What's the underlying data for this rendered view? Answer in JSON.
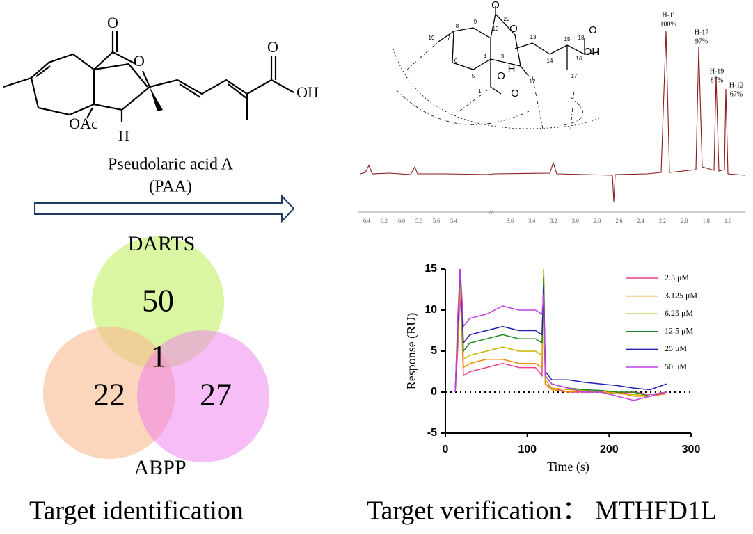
{
  "structure": {
    "atoms": [
      "O",
      "O",
      "OAc",
      "H",
      "O",
      "OH"
    ],
    "name": "Pseudolaric acid A",
    "abbreviation": "(PAA)"
  },
  "nmr": {
    "peaks": [
      {
        "label": "H-1'",
        "percent": "100%"
      },
      {
        "label": "H-17",
        "percent": "97%"
      },
      {
        "label": "H-19",
        "percent": "87%"
      },
      {
        "label": "H-12",
        "percent": "67%"
      }
    ],
    "ppm_ticks": [
      "6.4",
      "6.2",
      "6.0",
      "5.8",
      "5.6",
      "5.4",
      "3.6",
      "3.4",
      "3.2",
      "3.0",
      "2.8",
      "2.6",
      "2.4",
      "2.2",
      "2.0",
      "1.8",
      "1.6"
    ],
    "structure_labels": [
      "19",
      "7",
      "8",
      "9",
      "10",
      "20",
      "O",
      "O",
      "13",
      "15",
      "18",
      "OH",
      "O",
      "6",
      "5",
      "4",
      "3",
      "H",
      "14",
      "16",
      "12",
      "17",
      "O",
      "1'",
      "O"
    ]
  },
  "venn": {
    "sets": [
      "DARTS",
      "ABPP"
    ],
    "counts": [
      50,
      22,
      27,
      1
    ]
  },
  "chart_data": {
    "type": "line",
    "xlabel": "Time (s)",
    "ylabel": "Response (RU)",
    "x": [
      12,
      15,
      18,
      20,
      22,
      30,
      50,
      70,
      90,
      110,
      118,
      120,
      122,
      130,
      150,
      170,
      190,
      210,
      230,
      250,
      270
    ],
    "xlim": [
      0,
      300
    ],
    "xticks": [
      0,
      100,
      200,
      300
    ],
    "ylim": [
      -5,
      15
    ],
    "yticks": [
      -5,
      0,
      5,
      10,
      15
    ],
    "series": [
      {
        "name": "2.5 μM",
        "color": "#e8408a",
        "values": [
          0,
          5,
          12,
          8,
          2,
          2.5,
          3,
          3.5,
          3,
          3,
          2,
          15,
          1,
          0.5,
          0,
          0,
          0,
          -0.2,
          0,
          -0.3,
          0
        ]
      },
      {
        "name": "3.125 μM",
        "color": "#f08c00",
        "values": [
          0,
          6,
          13,
          9,
          3,
          3.5,
          4,
          4,
          3.5,
          3.5,
          3,
          14,
          1,
          0.3,
          0,
          0.2,
          0,
          0,
          -0.5,
          -0.5,
          -0.2
        ]
      },
      {
        "name": "6.25 μM",
        "color": "#c8b400",
        "values": [
          0,
          7,
          14,
          10,
          4,
          4.5,
          5,
          5.5,
          5,
          5,
          4.5,
          15,
          1.5,
          0.5,
          0.3,
          0.2,
          0,
          -0.2,
          -0.3,
          -0.5,
          0
        ]
      },
      {
        "name": "12.5 μM",
        "color": "#1a8a1a",
        "values": [
          0,
          8,
          15,
          11,
          5,
          6,
          6.5,
          7,
          6.5,
          6.5,
          6,
          14,
          2,
          1,
          0.5,
          0.3,
          0.2,
          0,
          0,
          -0.5,
          0
        ]
      },
      {
        "name": "25 μM",
        "color": "#2020b0",
        "values": [
          0,
          8,
          15,
          11,
          6,
          7,
          7.5,
          8,
          7.5,
          7.5,
          7,
          13,
          2.5,
          1.5,
          1.5,
          1.2,
          1,
          0.8,
          0.5,
          0.3,
          1
        ]
      },
      {
        "name": "50 μM",
        "color": "#c040e0",
        "values": [
          0,
          9,
          15,
          12,
          8,
          9,
          9.5,
          10.5,
          10,
          10,
          9.5,
          12,
          2,
          1,
          0.5,
          0,
          0,
          -0.5,
          -1,
          -0.5,
          0
        ]
      }
    ]
  },
  "captions": [
    "Target identification",
    "Target verification： MTHFD1L"
  ]
}
